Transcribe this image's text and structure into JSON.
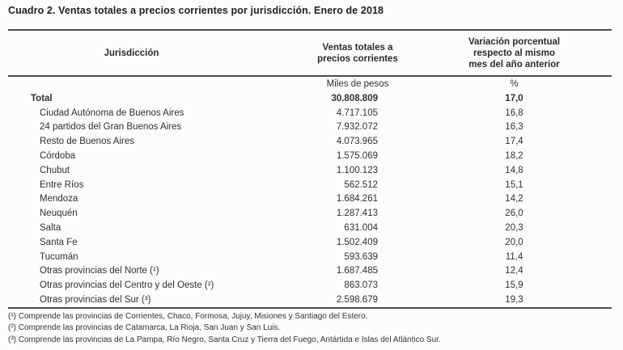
{
  "title": "Cuadro 2. Ventas totales a precios corrientes por jurisdicción. Enero de 2018",
  "colors": {
    "background": "#fcfcfc",
    "text": "#303032",
    "rule": "#4b4b4b"
  },
  "table": {
    "header": {
      "jurisdiccion": "Jurisdicción",
      "ventas": "Ventas totales a\nprecios corrientes",
      "variacion": "Variación porcentual\nrespecto al mismo\nmes del año anterior"
    },
    "units": {
      "ventas": "Miles de pesos",
      "variacion": "%"
    },
    "rows": [
      {
        "label": "Total",
        "ventas": "30.808.809",
        "variacion": "17,0",
        "bold": true
      },
      {
        "label": "Ciudad Autónoma de Buenos Aires",
        "ventas": "4.717.105",
        "variacion": "16,8"
      },
      {
        "label": "24 partidos del Gran Buenos Aires",
        "ventas": "7.932.072",
        "variacion": "16,3"
      },
      {
        "label": "Resto de Buenos Aires",
        "ventas": "4.073.965",
        "variacion": "17,4"
      },
      {
        "label": "Córdoba",
        "ventas": "1.575.069",
        "variacion": "18,2"
      },
      {
        "label": "Chubut",
        "ventas": "1.100.123",
        "variacion": "14,8"
      },
      {
        "label": "Entre Ríos",
        "ventas": "562.512",
        "variacion": "15,1"
      },
      {
        "label": "Mendoza",
        "ventas": "1.684.261",
        "variacion": "14,2"
      },
      {
        "label": "Neuquén",
        "ventas": "1.287.413",
        "variacion": "26,0"
      },
      {
        "label": "Salta",
        "ventas": "631.004",
        "variacion": "20,3"
      },
      {
        "label": "Santa Fe",
        "ventas": "1.502.409",
        "variacion": "20,0"
      },
      {
        "label": "Tucumán",
        "ventas": "593.639",
        "variacion": "11,4"
      },
      {
        "label": "Otras provincias del Norte (¹)",
        "ventas": "1.687.485",
        "variacion": "12,4"
      },
      {
        "label": "Otras provincias del Centro y del Oeste (²)",
        "ventas": "863.073",
        "variacion": "15,9"
      },
      {
        "label": "Otras provincias del Sur (³)",
        "ventas": "2.598.679",
        "variacion": "19,3"
      }
    ]
  },
  "footnotes": [
    "(¹) Comprende las provincias de Corrientes, Chaco, Formosa, Jujuy, Misiones y Santiago del Estero.",
    "(²) Comprende las provincias de Catamarca, La Rioja, San Juan y San Luis.",
    "(³) Comprende las provincias de La Pampa, Río Negro, Santa Cruz y Tierra del Fuego, Antártida e Islas del Atlántico Sur."
  ]
}
